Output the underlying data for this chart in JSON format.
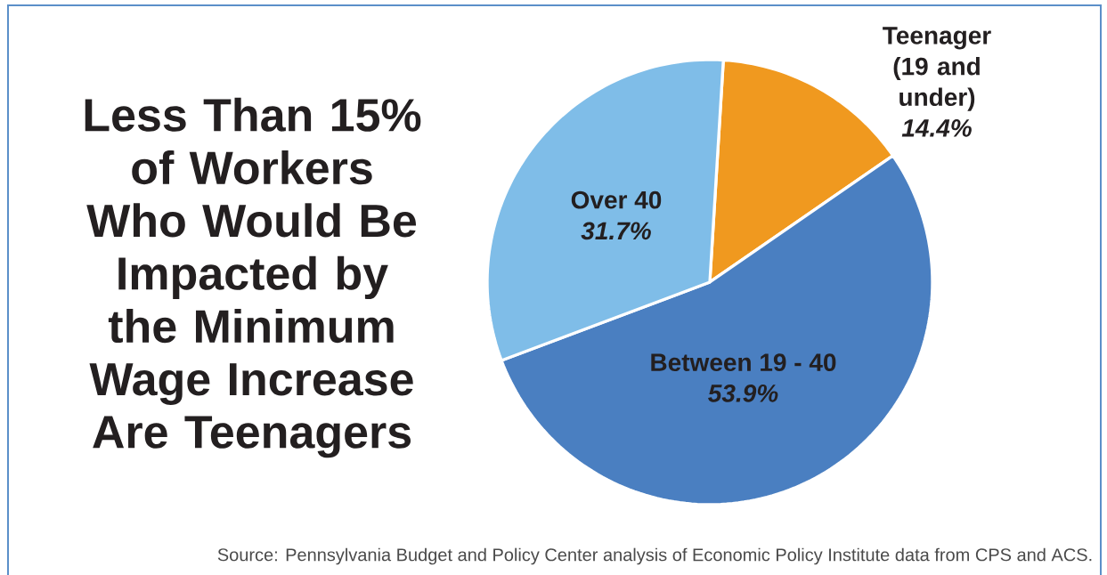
{
  "chart_data": {
    "type": "pie",
    "title": "Less Than 15% of Workers Who Would Be Impacted by the Minimum Wage Increase Are Teenagers",
    "categories": [
      "Teenager (19 and under)",
      "Between 19 - 40",
      "Over 40"
    ],
    "values": [
      14.4,
      53.9,
      31.7
    ],
    "colors": [
      "#f0991f",
      "#4a7fc1",
      "#7fbde8"
    ],
    "value_labels": [
      "14.4%",
      "53.9%",
      "31.7%"
    ],
    "annotations": [
      "Source: Pennsylvania Budget and Policy Center analysis of Economic Policy Institute data from CPS and ACS."
    ]
  }
}
